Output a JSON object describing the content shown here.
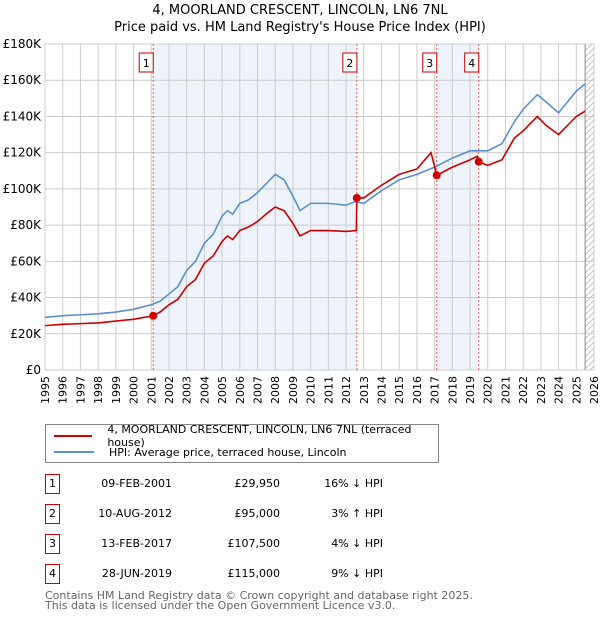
{
  "chart_data": {
    "type": "line",
    "title": "4, MOORLAND CRESCENT, LINCOLN, LN6 7NL",
    "subtitle": "Price paid vs. HM Land Registry's House Price Index (HPI)",
    "xlim": [
      1995,
      2026
    ],
    "ylim": [
      0,
      180000
    ],
    "y_ticks": [
      {
        "v": 0,
        "label": "£0"
      },
      {
        "v": 20000,
        "label": "£20K"
      },
      {
        "v": 40000,
        "label": "£40K"
      },
      {
        "v": 60000,
        "label": "£60K"
      },
      {
        "v": 80000,
        "label": "£80K"
      },
      {
        "v": 100000,
        "label": "£100K"
      },
      {
        "v": 120000,
        "label": "£120K"
      },
      {
        "v": 140000,
        "label": "£140K"
      },
      {
        "v": 160000,
        "label": "£160K"
      },
      {
        "v": 180000,
        "label": "£180K"
      }
    ],
    "x_ticks": [
      "1995",
      "1996",
      "1997",
      "1998",
      "1999",
      "2000",
      "2001",
      "2002",
      "2003",
      "2004",
      "2005",
      "2006",
      "2007",
      "2008",
      "2009",
      "2010",
      "2011",
      "2012",
      "2013",
      "2014",
      "2015",
      "2016",
      "2017",
      "2018",
      "2019",
      "2020",
      "2021",
      "2022",
      "2023",
      "2024",
      "2025",
      "2026"
    ],
    "grid": true,
    "forecast_from": 2025.5,
    "shaded": [
      [
        2001.11,
        2012.61
      ],
      [
        2017.12,
        2019.49
      ]
    ],
    "series": [
      {
        "name": "4, MOORLAND CRESCENT, LINCOLN, LN6 7NL (terraced house)",
        "color": "#cc0000",
        "points": [
          [
            1995,
            24500
          ],
          [
            1996,
            25200
          ],
          [
            1997,
            25600
          ],
          [
            1998,
            26000
          ],
          [
            1999,
            27000
          ],
          [
            2000,
            28000
          ],
          [
            2001.11,
            29950
          ],
          [
            2001.5,
            32000
          ],
          [
            2002,
            36000
          ],
          [
            2002.5,
            39000
          ],
          [
            2003,
            46000
          ],
          [
            2003.5,
            50000
          ],
          [
            2004,
            59000
          ],
          [
            2004.5,
            63000
          ],
          [
            2005,
            71000
          ],
          [
            2005.3,
            74000
          ],
          [
            2005.6,
            72000
          ],
          [
            2006,
            77000
          ],
          [
            2006.5,
            79000
          ],
          [
            2007,
            82000
          ],
          [
            2007.6,
            87000
          ],
          [
            2008,
            90000
          ],
          [
            2008.5,
            88000
          ],
          [
            2009,
            81000
          ],
          [
            2009.4,
            74000
          ],
          [
            2010,
            77000
          ],
          [
            2011,
            77000
          ],
          [
            2012,
            76500
          ],
          [
            2012.58,
            77000
          ],
          [
            2012.61,
            95000
          ],
          [
            2013,
            95000
          ],
          [
            2014,
            102000
          ],
          [
            2015,
            108000
          ],
          [
            2016,
            111000
          ],
          [
            2016.8,
            120000
          ],
          [
            2017.12,
            107500
          ],
          [
            2018,
            112000
          ],
          [
            2019,
            116000
          ],
          [
            2019.4,
            118000
          ],
          [
            2019.49,
            115000
          ],
          [
            2020,
            113000
          ],
          [
            2020.8,
            116000
          ],
          [
            2021.5,
            128000
          ],
          [
            2022,
            132000
          ],
          [
            2022.8,
            140000
          ],
          [
            2023.3,
            135000
          ],
          [
            2024,
            130000
          ],
          [
            2024.5,
            135000
          ],
          [
            2025,
            140000
          ],
          [
            2025.5,
            143000
          ]
        ]
      },
      {
        "name": "HPI: Average price, terraced house, Lincoln",
        "color": "#5b8fd0",
        "points": [
          [
            1995,
            29000
          ],
          [
            1996,
            30000
          ],
          [
            1997,
            30500
          ],
          [
            1998,
            31000
          ],
          [
            1999,
            32000
          ],
          [
            2000,
            33500
          ],
          [
            2001,
            36000
          ],
          [
            2001.5,
            38000
          ],
          [
            2002,
            42000
          ],
          [
            2002.5,
            46000
          ],
          [
            2003,
            55000
          ],
          [
            2003.5,
            60000
          ],
          [
            2004,
            70000
          ],
          [
            2004.5,
            75000
          ],
          [
            2005,
            85000
          ],
          [
            2005.3,
            88000
          ],
          [
            2005.6,
            86000
          ],
          [
            2006,
            92000
          ],
          [
            2006.5,
            94000
          ],
          [
            2007,
            98000
          ],
          [
            2007.6,
            104000
          ],
          [
            2008,
            108000
          ],
          [
            2008.5,
            105000
          ],
          [
            2009,
            96000
          ],
          [
            2009.4,
            88000
          ],
          [
            2010,
            92000
          ],
          [
            2011,
            92000
          ],
          [
            2012,
            91000
          ],
          [
            2012.5,
            93000
          ],
          [
            2013,
            92000
          ],
          [
            2014,
            99000
          ],
          [
            2015,
            105000
          ],
          [
            2016,
            108000
          ],
          [
            2017,
            112000
          ],
          [
            2018,
            117000
          ],
          [
            2019,
            121000
          ],
          [
            2020,
            121000
          ],
          [
            2020.8,
            125000
          ],
          [
            2021.5,
            137000
          ],
          [
            2022,
            144000
          ],
          [
            2022.8,
            152000
          ],
          [
            2023.3,
            148000
          ],
          [
            2024,
            142000
          ],
          [
            2024.5,
            148000
          ],
          [
            2025,
            154000
          ],
          [
            2025.5,
            158000
          ]
        ]
      }
    ],
    "sales": [
      {
        "n": "1",
        "x": 2001.11,
        "y": 29950
      },
      {
        "n": "2",
        "x": 2012.61,
        "y": 95000
      },
      {
        "n": "3",
        "x": 2017.12,
        "y": 107500
      },
      {
        "n": "4",
        "x": 2019.49,
        "y": 115000
      }
    ]
  },
  "legend": {
    "property": "4, MOORLAND CRESCENT, LINCOLN, LN6 7NL (terraced house)",
    "hpi": "HPI: Average price, terraced house, Lincoln"
  },
  "transactions": [
    {
      "n": "1",
      "date": "09-FEB-2001",
      "price": "£29,950",
      "hpi": "16% ↓ HPI"
    },
    {
      "n": "2",
      "date": "10-AUG-2012",
      "price": "£95,000",
      "hpi": "3% ↑ HPI"
    },
    {
      "n": "3",
      "date": "13-FEB-2017",
      "price": "£107,500",
      "hpi": "4% ↓ HPI"
    },
    {
      "n": "4",
      "date": "28-JUN-2019",
      "price": "£115,000",
      "hpi": "9% ↓ HPI"
    }
  ],
  "footer": {
    "line1": "Contains HM Land Registry data © Crown copyright and database right 2025.",
    "line2": "This data is licensed under the Open Government Licence v3.0."
  },
  "colors": {
    "property": "#cc0000",
    "hpi": "#5b8fd0",
    "shade": "#eef3fc"
  }
}
